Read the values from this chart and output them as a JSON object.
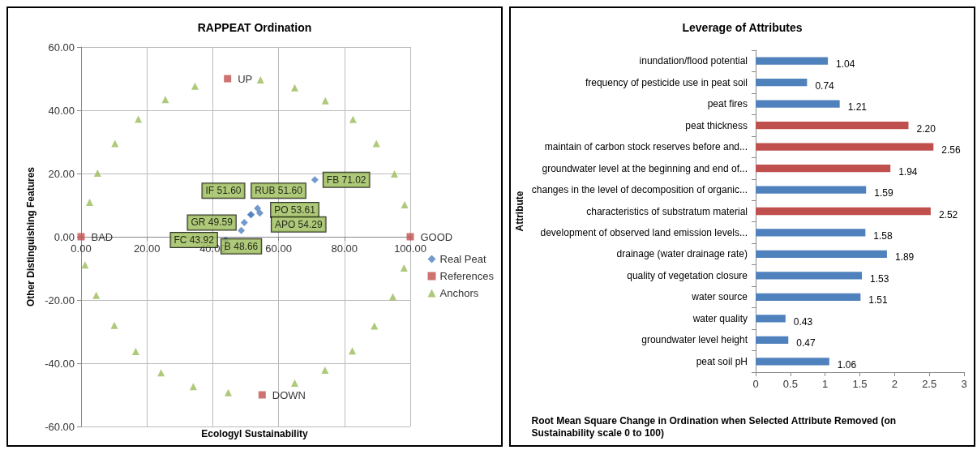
{
  "chart_data": [
    {
      "type": "scatter",
      "title": "RAPPEAT Ordination",
      "xlabel": "Ecologyl Sustainability",
      "ylabel": "Other Distinguishing Features",
      "xlim": [
        0,
        100
      ],
      "xticks": [
        {
          "value": 0,
          "label": "0.00"
        },
        {
          "value": 20,
          "label": "20.00"
        },
        {
          "value": 40,
          "label": "40.00"
        },
        {
          "value": 60,
          "label": "60.00"
        },
        {
          "value": 80,
          "label": "80.00"
        },
        {
          "value": 100,
          "label": "100.00"
        }
      ],
      "ylim": [
        -60,
        60
      ],
      "yticks": [
        {
          "value": -60,
          "label": "-60.00"
        },
        {
          "value": -40,
          "label": "-40.00"
        },
        {
          "value": -20,
          "label": "-20.00"
        },
        {
          "value": 0,
          "label": "0.00"
        },
        {
          "value": 20,
          "label": "20.00"
        },
        {
          "value": 40,
          "label": "40.00"
        },
        {
          "value": 60,
          "label": "60.00"
        }
      ],
      "grid": true,
      "legend": "right",
      "series": [
        {
          "name": "Real Peat",
          "color": "#4f81bd",
          "marker": "diamond",
          "x": [
            43.92,
            48.66,
            49.59,
            51.6,
            51.6,
            53.61,
            54.29,
            71.02
          ],
          "values": [
            -1,
            2,
            4.5,
            7,
            7,
            9,
            7.5,
            18
          ],
          "value_labels": [
            "FC 43.92",
            "B 48.66",
            "GR 49.59",
            "IF 51.60",
            "RUB 51.60",
            "PO 53.61",
            "APO 54.29",
            "FB 71.02"
          ]
        },
        {
          "name": "References",
          "color": "#c0504d",
          "marker": "square",
          "x": [
            0,
            100,
            44.5,
            55
          ],
          "values": [
            0,
            0,
            50,
            -50
          ],
          "value_labels": [
            "BAD",
            "GOOD",
            "UP",
            "DOWN"
          ]
        },
        {
          "name": "Anchors",
          "color": "#9bbb59",
          "marker": "triangle",
          "x": [
            54.5,
            64.9,
            74.2,
            82.6,
            89.7,
            95.2,
            98.3,
            98.1,
            94.7,
            89.1,
            82.4,
            74.1,
            64.9,
            44.7,
            34.1,
            24.3,
            16.6,
            10.1,
            4.6,
            1.2,
            2.6,
            5,
            10.3,
            17.4,
            25.6,
            34.6
          ],
          "values": [
            49.6,
            47.1,
            43,
            37.1,
            29.5,
            19.9,
            10.1,
            -9.9,
            -19,
            -28.2,
            -36.1,
            -42.2,
            -46.3,
            -49.3,
            -47.4,
            -43,
            -36.3,
            -28,
            -18.5,
            -8.9,
            10.9,
            20.1,
            29.5,
            37.2,
            43.4,
            47.6
          ]
        }
      ]
    },
    {
      "type": "bar",
      "orientation": "horizontal",
      "title": "Leverage of Attributes",
      "xlabel": "Root Mean Square Change in Ordination when Selected Attribute Removed (on Sustainability scale 0 to 100)",
      "ylabel": "Attribute",
      "categories": [
        "inundation/flood potential",
        "frequency of pesticide use in peat soil",
        "peat fires",
        "peat thickness",
        "maintain of carbon stock reserves before and...",
        "groundwater level at the beginning and end of...",
        "changes in the level of decomposition of organic...",
        "characteristics of substratum material",
        "development of observed land emission levels...",
        "drainage (water drainage rate)",
        "quality of vegetation closure",
        "water source",
        "water quality",
        "groundwater level height",
        "peat soil pH"
      ],
      "values": [
        1.04,
        0.74,
        1.21,
        2.2,
        2.56,
        1.94,
        1.59,
        2.52,
        1.58,
        1.89,
        1.53,
        1.51,
        0.43,
        0.47,
        1.06
      ],
      "value_labels": [
        "1.04",
        "0.74",
        "1.21",
        "2.20",
        "2.56",
        "1.94",
        "1.59",
        "2.52",
        "1.58",
        "1.89",
        "1.53",
        "1.51",
        "0.43",
        "0.47",
        "1.06"
      ],
      "colors": [
        "#4f81bd",
        "#4f81bd",
        "#4f81bd",
        "#c0504d",
        "#c0504d",
        "#c0504d",
        "#4f81bd",
        "#c0504d",
        "#4f81bd",
        "#4f81bd",
        "#4f81bd",
        "#4f81bd",
        "#4f81bd",
        "#4f81bd",
        "#4f81bd"
      ],
      "xlim": [
        0,
        3
      ],
      "xticks": [
        0,
        0.5,
        1,
        1.5,
        2,
        2.5,
        3
      ],
      "grid": false,
      "legend": false
    }
  ]
}
